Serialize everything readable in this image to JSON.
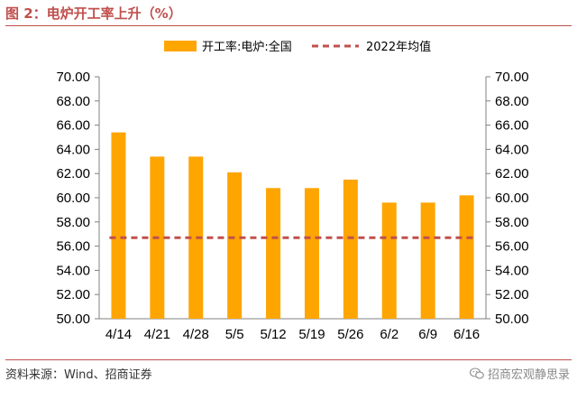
{
  "figure": {
    "title": "图 2：电炉开工率上升（%）",
    "source": "资料来源：Wind、招商证券",
    "brand": "招商宏观静思录",
    "brand_icon": "wechat-icon"
  },
  "chart_data": {
    "type": "bar",
    "categories": [
      "4/14",
      "4/21",
      "4/28",
      "5/5",
      "5/12",
      "5/19",
      "5/26",
      "6/2",
      "6/9",
      "6/16"
    ],
    "series": [
      {
        "name": "开工率:电炉:全国",
        "type": "bar",
        "color": "#ffa500",
        "values": [
          65.4,
          63.4,
          63.4,
          62.1,
          60.8,
          60.8,
          61.5,
          59.6,
          59.6,
          60.2
        ]
      },
      {
        "name": "2022年均值",
        "type": "line",
        "style": "dashed",
        "color": "#c0504d",
        "value": 56.7
      }
    ],
    "ylim": [
      50,
      70
    ],
    "y_ticks": [
      "50.00",
      "52.00",
      "54.00",
      "56.00",
      "58.00",
      "60.00",
      "62.00",
      "64.00",
      "66.00",
      "68.00",
      "70.00"
    ],
    "y2_ticks": [
      "50.00",
      "52.00",
      "54.00",
      "56.00",
      "58.00",
      "60.00",
      "62.00",
      "64.00",
      "66.00",
      "68.00",
      "70.00"
    ],
    "legend_position": "top-center",
    "grid": false
  }
}
